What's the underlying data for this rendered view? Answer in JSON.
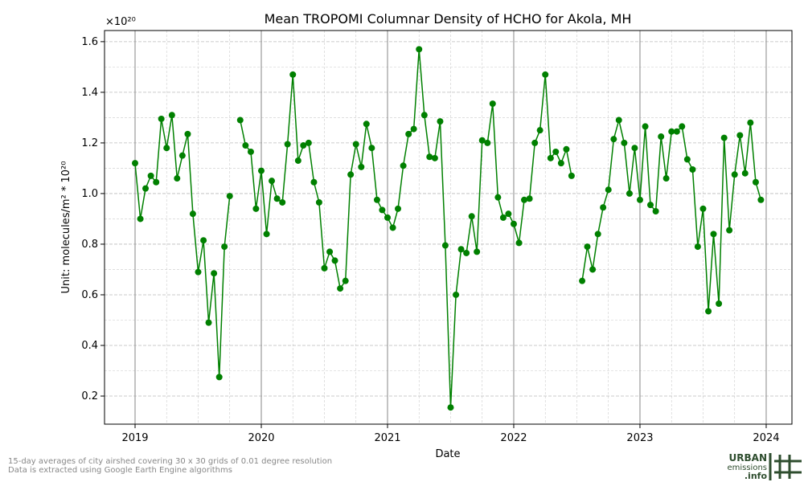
{
  "chart_data": {
    "type": "line",
    "title": "Mean TROPOMI Columnar Density of HCHO for Akola, MH",
    "x_label": "Date",
    "y_label": "Unit: molecules/m² * 10²⁰",
    "y_offset_label": "×10²⁰",
    "color": "#008000",
    "grid": true,
    "x": [
      2019,
      2019.042,
      2019.083,
      2019.125,
      2019.167,
      2019.208,
      2019.25,
      2019.292,
      2019.333,
      2019.375,
      2019.417,
      2019.458,
      2019.5,
      2019.542,
      2019.583,
      2019.625,
      2019.667,
      2019.708,
      2019.75,
      2019.792,
      2019.833,
      2019.875,
      2019.917,
      2019.958,
      2020,
      2020.042,
      2020.083,
      2020.125,
      2020.167,
      2020.208,
      2020.25,
      2020.292,
      2020.333,
      2020.375,
      2020.417,
      2020.458,
      2020.5,
      2020.542,
      2020.583,
      2020.625,
      2020.667,
      2020.708,
      2020.75,
      2020.792,
      2020.833,
      2020.875,
      2020.917,
      2020.958,
      2021,
      2021.042,
      2021.083,
      2021.125,
      2021.167,
      2021.208,
      2021.25,
      2021.292,
      2021.333,
      2021.375,
      2021.417,
      2021.458,
      2021.5,
      2021.542,
      2021.583,
      2021.625,
      2021.667,
      2021.708,
      2021.75,
      2021.792,
      2021.833,
      2021.875,
      2021.917,
      2021.958,
      2022,
      2022.042,
      2022.083,
      2022.125,
      2022.167,
      2022.208,
      2022.25,
      2022.292,
      2022.333,
      2022.375,
      2022.417,
      2022.458,
      2022.5,
      2022.542,
      2022.583,
      2022.625,
      2022.667,
      2022.708,
      2022.75,
      2022.792,
      2022.833,
      2022.875,
      2022.917,
      2022.958,
      2023,
      2023.042,
      2023.083,
      2023.125,
      2023.167,
      2023.208,
      2023.25,
      2023.292,
      2023.333,
      2023.375,
      2023.417,
      2023.458,
      2023.5,
      2023.542,
      2023.583,
      2023.625,
      2023.667,
      2023.708,
      2023.75,
      2023.792,
      2023.833,
      2023.875,
      2023.917,
      2023.958
    ],
    "values": [
      1.12,
      0.9,
      1.02,
      1.07,
      1.045,
      1.295,
      1.18,
      1.31,
      1.06,
      1.15,
      1.235,
      0.92,
      0.69,
      0.815,
      0.49,
      0.685,
      0.275,
      0.79,
      0.99,
      null,
      1.29,
      1.19,
      1.165,
      0.94,
      1.09,
      0.84,
      1.05,
      0.98,
      0.965,
      1.195,
      1.47,
      1.13,
      1.19,
      1.2,
      1.045,
      0.965,
      0.705,
      0.77,
      0.735,
      0.625,
      0.655,
      1.075,
      1.195,
      1.105,
      1.275,
      1.18,
      0.975,
      0.935,
      0.905,
      0.865,
      0.94,
      1.11,
      1.235,
      1.255,
      1.57,
      1.31,
      1.145,
      1.14,
      1.285,
      0.795,
      0.155,
      0.6,
      0.78,
      0.765,
      0.91,
      0.77,
      1.21,
      1.2,
      1.355,
      0.985,
      0.905,
      0.92,
      0.88,
      0.805,
      0.975,
      0.98,
      1.2,
      1.25,
      1.47,
      1.14,
      1.165,
      1.12,
      1.175,
      1.07,
      null,
      0.655,
      0.79,
      0.7,
      0.84,
      0.945,
      1.015,
      1.215,
      1.29,
      1.2,
      1.0,
      1.18,
      0.975,
      1.265,
      0.955,
      0.93,
      1.225,
      1.06,
      1.245,
      1.245,
      1.265,
      1.135,
      1.095,
      0.79,
      0.94,
      0.535,
      0.84,
      0.565,
      1.22,
      0.855,
      1.075,
      1.23,
      1.08,
      1.28,
      1.045,
      0.975
    ],
    "xlim": [
      2018.758,
      2024.204
    ],
    "xticks": [
      2019,
      2020,
      2021,
      2022,
      2023,
      2024
    ],
    "ylim": [
      0.089,
      1.644
    ],
    "yticks": [
      0.2,
      0.4,
      0.6,
      0.8,
      {
        "value": 1,
        "label": "1.0"
      },
      1.2,
      1.4,
      1.6
    ],
    "notes": [
      "15-day averages of city airshed covering 30 x 30 grids of 0.01 degree resolution",
      "Data is extracted using Google Earth Engine algorithms"
    ],
    "logo": [
      "URBAN",
      "emissions",
      ".info"
    ]
  }
}
